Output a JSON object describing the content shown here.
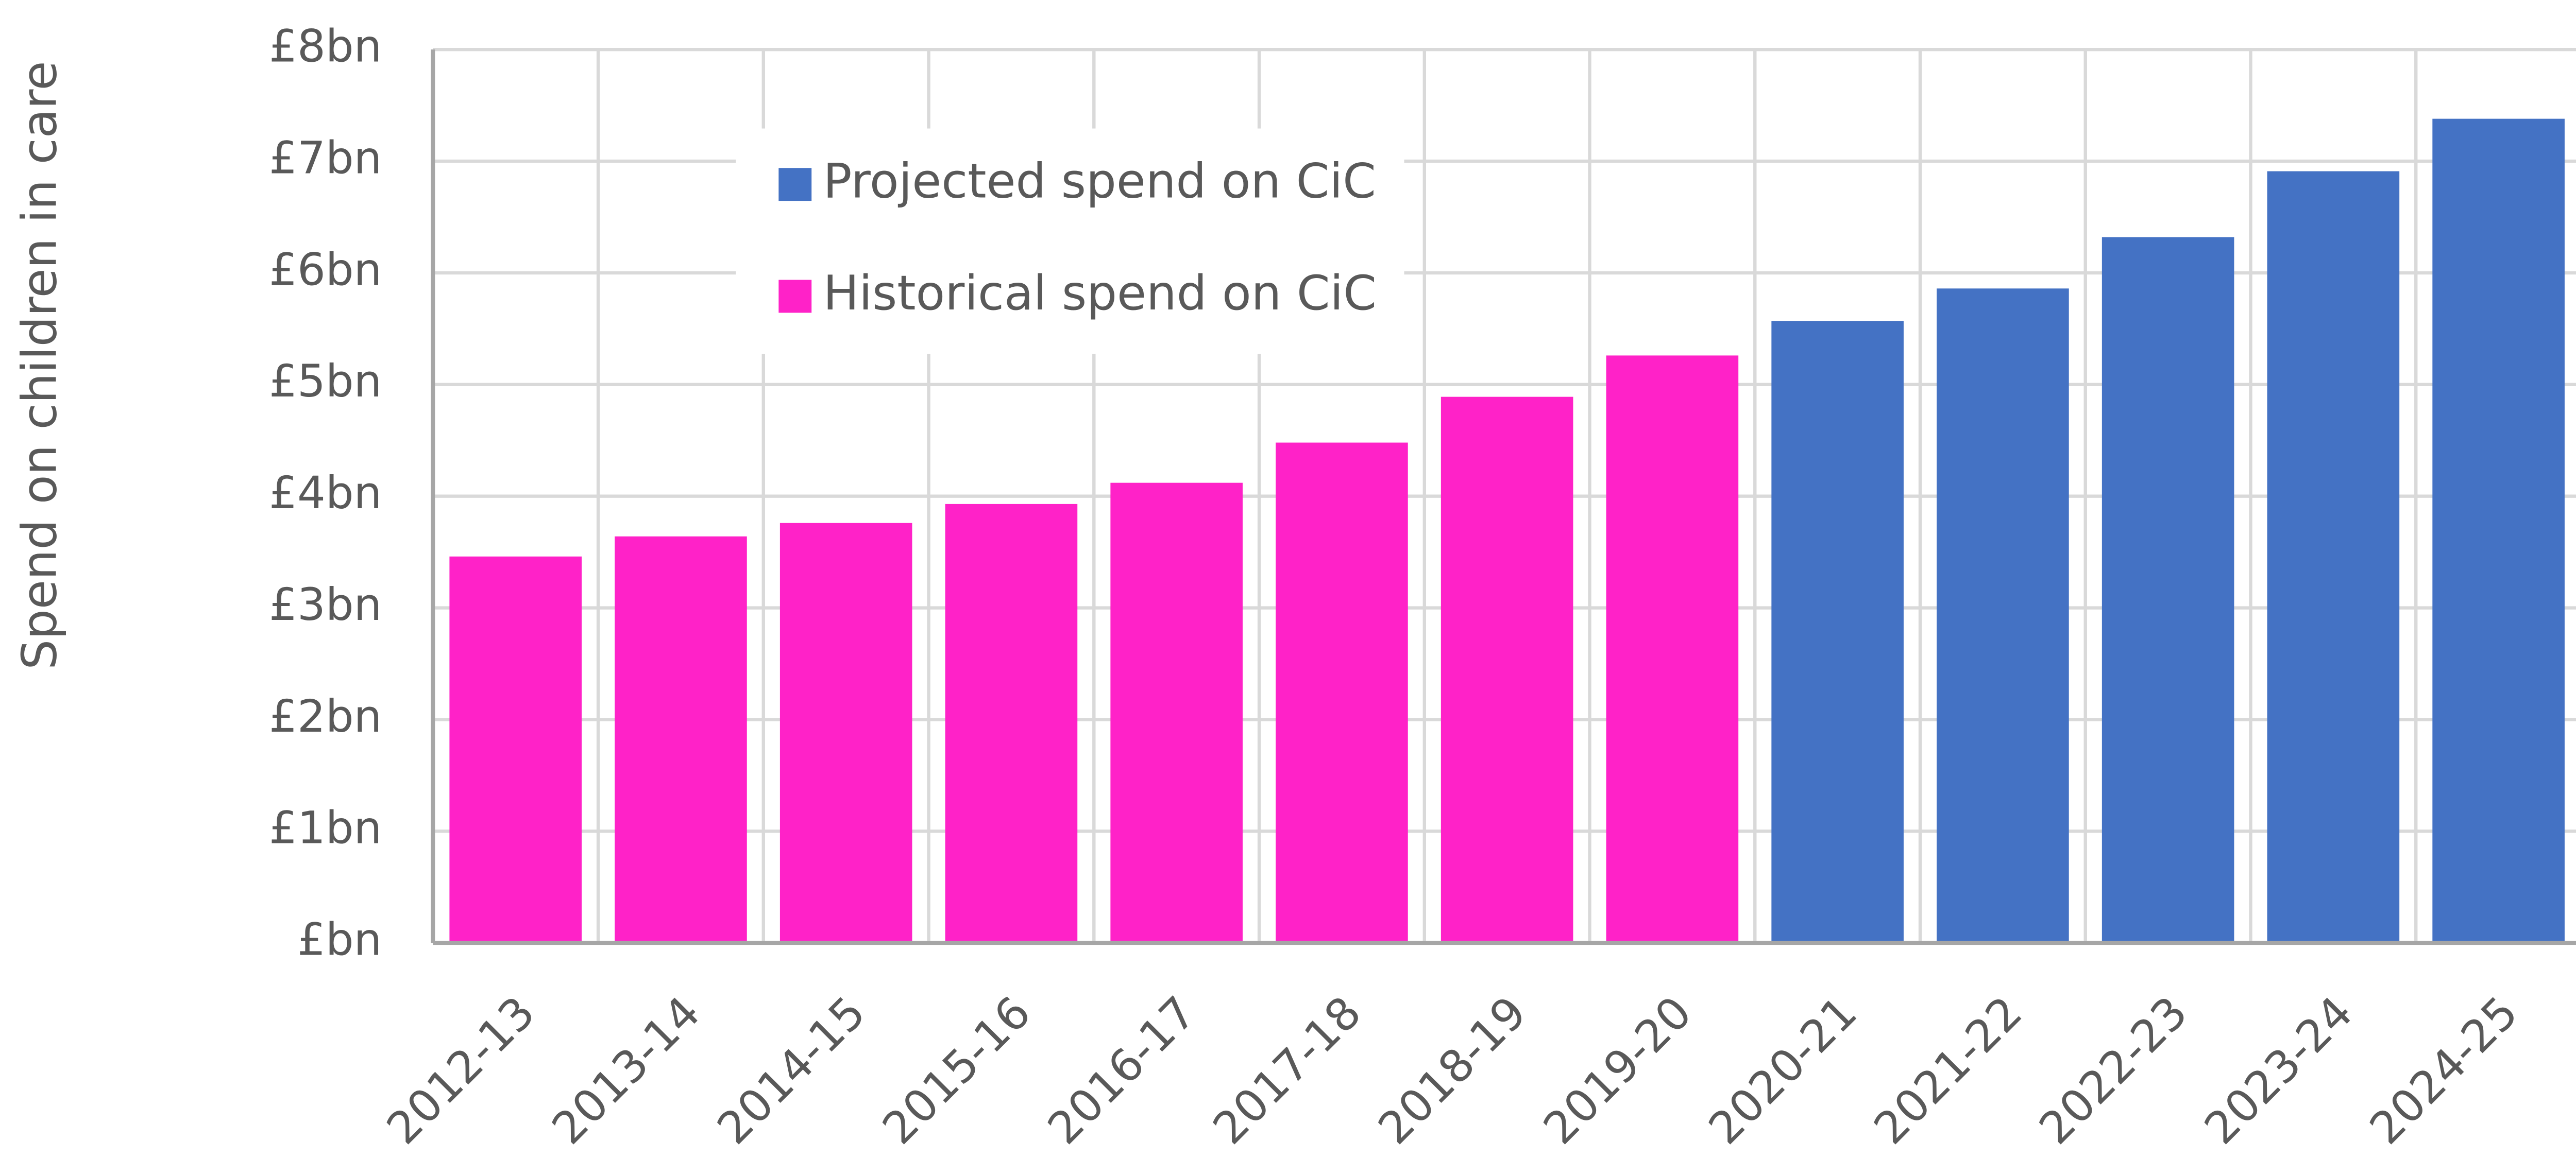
{
  "chart_data": {
    "type": "bar",
    "y_label": "Spend on children in care",
    "categories": [
      "2012-13",
      "2013-14",
      "2014-15",
      "2015-16",
      "2016-17",
      "2017-18",
      "2018-19",
      "2019-20",
      "2020-21",
      "2021-22",
      "2022-23",
      "2023-24",
      "2024-25"
    ],
    "series": [
      {
        "name": "Projected spend on CiC",
        "color": "#4472c4",
        "values": [
          null,
          null,
          null,
          null,
          null,
          null,
          null,
          null,
          5.57,
          5.86,
          6.32,
          6.91,
          7.38
        ]
      },
      {
        "name": "Historical spend on CiC",
        "color": "#ff22c8",
        "values": [
          3.46,
          3.64,
          3.76,
          3.93,
          4.12,
          4.48,
          4.89,
          5.26,
          null,
          null,
          null,
          null,
          null
        ]
      }
    ],
    "ylim": [
      0,
      8
    ],
    "yticks": [
      {
        "value": 0,
        "label": "£bn"
      },
      {
        "value": 1,
        "label": "£1bn"
      },
      {
        "value": 2,
        "label": "£2bn"
      },
      {
        "value": 3,
        "label": "£3bn"
      },
      {
        "value": 4,
        "label": "£4bn"
      },
      {
        "value": 5,
        "label": "£5bn"
      },
      {
        "value": 6,
        "label": "£6bn"
      },
      {
        "value": 7,
        "label": "£7bn"
      },
      {
        "value": 8,
        "label": "£8bn"
      }
    ],
    "grid": true
  }
}
